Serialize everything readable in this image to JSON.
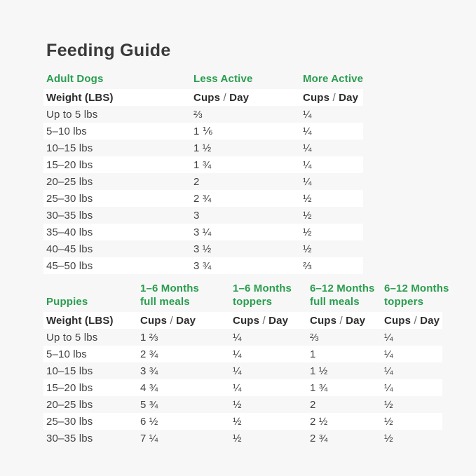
{
  "page": {
    "title": "Feeding Guide",
    "colors": {
      "background": "#f7f7f7",
      "row_white": "#ffffff",
      "accent_green": "#2a9d4f",
      "text_dark": "#3a3a3a",
      "text_body": "#424242",
      "slash_gray": "#6a6a6a"
    }
  },
  "chart_data": [
    {
      "type": "table",
      "section_label": "Adult Dogs",
      "activity_headers": [
        "Less Active",
        "More Active"
      ],
      "weight_header": "Weight (LBS)",
      "cups_day": {
        "cups": "Cups",
        "slash": "/",
        "day": "Day"
      },
      "rows": [
        {
          "weight": "Up to 5 lbs",
          "values": [
            "⅔",
            "¼"
          ]
        },
        {
          "weight": "5–10 lbs",
          "values": [
            "1 ⅙",
            "¼"
          ]
        },
        {
          "weight": "10–15 lbs",
          "values": [
            "1 ½",
            "¼"
          ]
        },
        {
          "weight": "15–20 lbs",
          "values": [
            "1 ¾",
            "¼"
          ]
        },
        {
          "weight": "20–25 lbs",
          "values": [
            "2",
            "¼"
          ]
        },
        {
          "weight": "25–30 lbs",
          "values": [
            "2 ¾",
            "½"
          ]
        },
        {
          "weight": "30–35 lbs",
          "values": [
            "3",
            "½"
          ]
        },
        {
          "weight": "35–40 lbs",
          "values": [
            "3 ¼",
            "½"
          ]
        },
        {
          "weight": "40–45 lbs",
          "values": [
            "3 ½",
            "½"
          ]
        },
        {
          "weight": "45–50 lbs",
          "values": [
            "3 ¾",
            "⅔"
          ]
        }
      ]
    },
    {
      "type": "table",
      "section_label": "Puppies",
      "month_headers": [
        {
          "line1": "1–6 Months",
          "line2": "full meals"
        },
        {
          "line1": "1–6 Months",
          "line2": "toppers"
        },
        {
          "line1": "6–12 Months",
          "line2": "full meals"
        },
        {
          "line1": "6–12 Months",
          "line2": "toppers"
        }
      ],
      "weight_header": "Weight (LBS)",
      "cups_day": {
        "cups": "Cups",
        "slash": "/",
        "day": "Day"
      },
      "rows": [
        {
          "weight": "Up to 5 lbs",
          "values": [
            "1 ⅔",
            "¼",
            "⅔",
            "¼"
          ]
        },
        {
          "weight": "5–10 lbs",
          "values": [
            "2 ¾",
            "¼",
            "1",
            "¼"
          ]
        },
        {
          "weight": "10–15 lbs",
          "values": [
            "3 ¾",
            "¼",
            "1 ½",
            "¼"
          ]
        },
        {
          "weight": "15–20 lbs",
          "values": [
            "4 ¾",
            "¼",
            "1 ¾",
            "¼"
          ]
        },
        {
          "weight": "20–25 lbs",
          "values": [
            "5 ¾",
            "½",
            "2",
            "½"
          ]
        },
        {
          "weight": "25–30 lbs",
          "values": [
            "6 ½",
            "½",
            "2 ½",
            "½"
          ]
        },
        {
          "weight": "30–35 lbs",
          "values": [
            "7 ¼",
            "½",
            "2 ¾",
            "½"
          ]
        }
      ]
    }
  ]
}
